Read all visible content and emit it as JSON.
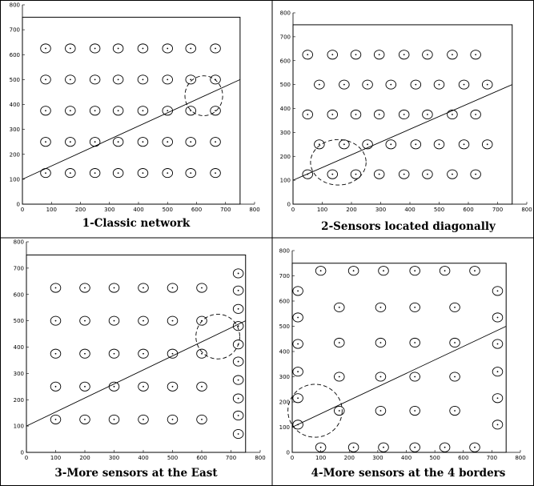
{
  "figure": {
    "colors": {
      "line": "#000000",
      "border": "#000000",
      "background": "#ffffff"
    },
    "panels": [
      {
        "caption": "1-Classic network",
        "x_ticks": [
          "0",
          "100",
          "200",
          "300",
          "400",
          "500",
          "600",
          "700",
          "800"
        ],
        "y_ticks": [
          "0",
          "100",
          "200",
          "300",
          "400",
          "500",
          "600",
          "700",
          "800"
        ],
        "xlim": [
          0,
          800
        ],
        "ylim": [
          0,
          800
        ],
        "area_x": 750,
        "area_y": 750,
        "line": [
          [
            0,
            100
          ],
          [
            750,
            500
          ]
        ],
        "sensors": [
          [
            80,
            125
          ],
          [
            165,
            125
          ],
          [
            250,
            125
          ],
          [
            330,
            125
          ],
          [
            415,
            125
          ],
          [
            500,
            125
          ],
          [
            580,
            125
          ],
          [
            665,
            125
          ],
          [
            80,
            250
          ],
          [
            165,
            250
          ],
          [
            250,
            250
          ],
          [
            330,
            250
          ],
          [
            415,
            250
          ],
          [
            500,
            250
          ],
          [
            580,
            250
          ],
          [
            665,
            250
          ],
          [
            80,
            375
          ],
          [
            165,
            375
          ],
          [
            250,
            375
          ],
          [
            330,
            375
          ],
          [
            415,
            375
          ],
          [
            500,
            375
          ],
          [
            580,
            375
          ],
          [
            665,
            375
          ],
          [
            80,
            500
          ],
          [
            165,
            500
          ],
          [
            250,
            500
          ],
          [
            330,
            500
          ],
          [
            415,
            500
          ],
          [
            500,
            500
          ],
          [
            580,
            500
          ],
          [
            665,
            500
          ],
          [
            80,
            625
          ],
          [
            165,
            625
          ],
          [
            250,
            625
          ],
          [
            330,
            625
          ],
          [
            415,
            625
          ],
          [
            500,
            625
          ],
          [
            580,
            625
          ],
          [
            665,
            625
          ]
        ],
        "event_circle": {
          "cx": 625,
          "cy": 435,
          "rx": 65,
          "ry": 80
        }
      },
      {
        "caption": "2-Sensors located diagonally",
        "x_ticks": [
          "0",
          "100",
          "200",
          "300",
          "400",
          "500",
          "600",
          "700",
          "800"
        ],
        "y_ticks": [
          "0",
          "100",
          "200",
          "300",
          "400",
          "500",
          "600",
          "700",
          "800"
        ],
        "xlim": [
          0,
          800
        ],
        "ylim": [
          0,
          800
        ],
        "area_x": 750,
        "area_y": 750,
        "line": [
          [
            0,
            100
          ],
          [
            750,
            500
          ]
        ],
        "sensors": [
          [
            50,
            125
          ],
          [
            135,
            125
          ],
          [
            215,
            125
          ],
          [
            295,
            125
          ],
          [
            380,
            125
          ],
          [
            460,
            125
          ],
          [
            545,
            125
          ],
          [
            625,
            125
          ],
          [
            90,
            250
          ],
          [
            175,
            250
          ],
          [
            255,
            250
          ],
          [
            335,
            250
          ],
          [
            420,
            250
          ],
          [
            500,
            250
          ],
          [
            585,
            250
          ],
          [
            665,
            250
          ],
          [
            50,
            375
          ],
          [
            135,
            375
          ],
          [
            215,
            375
          ],
          [
            295,
            375
          ],
          [
            380,
            375
          ],
          [
            460,
            375
          ],
          [
            545,
            375
          ],
          [
            625,
            375
          ],
          [
            90,
            500
          ],
          [
            175,
            500
          ],
          [
            255,
            500
          ],
          [
            335,
            500
          ],
          [
            420,
            500
          ],
          [
            500,
            500
          ],
          [
            585,
            500
          ],
          [
            665,
            500
          ],
          [
            50,
            625
          ],
          [
            135,
            625
          ],
          [
            215,
            625
          ],
          [
            295,
            625
          ],
          [
            380,
            625
          ],
          [
            460,
            625
          ],
          [
            545,
            625
          ],
          [
            625,
            625
          ]
        ],
        "event_circle": {
          "cx": 155,
          "cy": 175,
          "rx": 95,
          "ry": 95
        }
      },
      {
        "caption": "3-More sensors at the East",
        "x_ticks": [
          "0",
          "100",
          "200",
          "300",
          "400",
          "500",
          "600",
          "700",
          "800"
        ],
        "y_ticks": [
          "0",
          "100",
          "200",
          "300",
          "400",
          "500",
          "600",
          "700",
          "800"
        ],
        "xlim": [
          0,
          800
        ],
        "ylim": [
          0,
          800
        ],
        "area_x": 750,
        "area_y": 750,
        "line": [
          [
            0,
            100
          ],
          [
            750,
            500
          ]
        ],
        "sensors": [
          [
            100,
            125
          ],
          [
            200,
            125
          ],
          [
            300,
            125
          ],
          [
            400,
            125
          ],
          [
            500,
            125
          ],
          [
            600,
            125
          ],
          [
            100,
            250
          ],
          [
            200,
            250
          ],
          [
            300,
            250
          ],
          [
            400,
            250
          ],
          [
            500,
            250
          ],
          [
            600,
            250
          ],
          [
            100,
            375
          ],
          [
            200,
            375
          ],
          [
            300,
            375
          ],
          [
            400,
            375
          ],
          [
            500,
            375
          ],
          [
            600,
            375
          ],
          [
            100,
            500
          ],
          [
            200,
            500
          ],
          [
            300,
            500
          ],
          [
            400,
            500
          ],
          [
            500,
            500
          ],
          [
            600,
            500
          ],
          [
            100,
            625
          ],
          [
            200,
            625
          ],
          [
            300,
            625
          ],
          [
            400,
            625
          ],
          [
            500,
            625
          ],
          [
            600,
            625
          ],
          [
            725,
            70
          ],
          [
            725,
            140
          ],
          [
            725,
            205
          ],
          [
            725,
            275
          ],
          [
            725,
            345
          ],
          [
            725,
            410
          ],
          [
            725,
            480
          ],
          [
            725,
            545
          ],
          [
            725,
            615
          ],
          [
            725,
            680
          ]
        ],
        "event_circle": {
          "cx": 655,
          "cy": 440,
          "rx": 75,
          "ry": 85
        }
      },
      {
        "caption": "4-More sensors at the 4 borders",
        "x_ticks": [
          "0",
          "100",
          "200",
          "300",
          "400",
          "500",
          "600",
          "700",
          "800"
        ],
        "y_ticks": [
          "0",
          "100",
          "200",
          "300",
          "400",
          "500",
          "600",
          "700",
          "800"
        ],
        "xlim": [
          0,
          800
        ],
        "ylim": [
          0,
          800
        ],
        "area_x": 750,
        "area_y": 750,
        "line": [
          [
            0,
            100
          ],
          [
            750,
            500
          ]
        ],
        "sensors": [
          [
            100,
            20
          ],
          [
            215,
            20
          ],
          [
            320,
            20
          ],
          [
            430,
            20
          ],
          [
            535,
            20
          ],
          [
            640,
            20
          ],
          [
            100,
            720
          ],
          [
            215,
            720
          ],
          [
            320,
            720
          ],
          [
            430,
            720
          ],
          [
            535,
            720
          ],
          [
            640,
            720
          ],
          [
            20,
            110
          ],
          [
            20,
            215
          ],
          [
            20,
            320
          ],
          [
            20,
            430
          ],
          [
            20,
            535
          ],
          [
            20,
            640
          ],
          [
            720,
            110
          ],
          [
            720,
            215
          ],
          [
            720,
            320
          ],
          [
            720,
            430
          ],
          [
            720,
            535
          ],
          [
            720,
            640
          ],
          [
            165,
            165
          ],
          [
            310,
            165
          ],
          [
            430,
            165
          ],
          [
            570,
            165
          ],
          [
            165,
            300
          ],
          [
            310,
            300
          ],
          [
            430,
            300
          ],
          [
            570,
            300
          ],
          [
            165,
            435
          ],
          [
            310,
            435
          ],
          [
            430,
            435
          ],
          [
            570,
            435
          ],
          [
            165,
            575
          ],
          [
            310,
            575
          ],
          [
            430,
            575
          ],
          [
            570,
            575
          ]
        ],
        "event_circle": {
          "cx": 80,
          "cy": 165,
          "rx": 95,
          "ry": 105
        }
      }
    ]
  }
}
